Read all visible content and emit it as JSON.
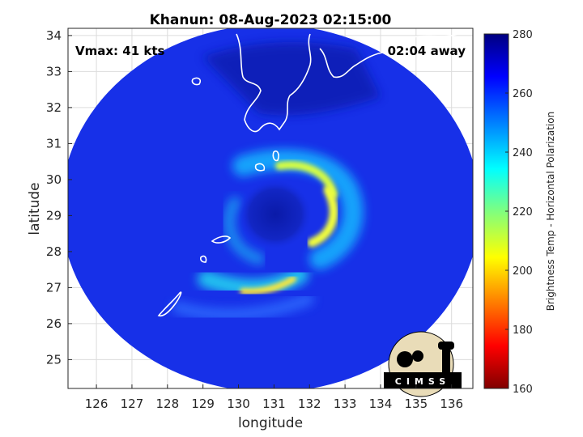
{
  "chart_data": {
    "type": "heatmap",
    "title": "Khanun: 08-Aug-2023 02:15:00",
    "xlabel": "longitude",
    "ylabel": "latitude",
    "xlim": [
      125.2,
      136.6
    ],
    "ylim": [
      24.2,
      34.2
    ],
    "xticks": [
      126,
      127,
      128,
      129,
      130,
      131,
      132,
      133,
      134,
      135,
      136
    ],
    "yticks": [
      25,
      26,
      27,
      28,
      29,
      30,
      31,
      32,
      33,
      34
    ],
    "grid": true,
    "annotations": {
      "vmax": "Vmax: 41 kts",
      "away": "02:04 away"
    },
    "colorbar": {
      "label": "Brightness Temp - Horizontal Polarization",
      "range": [
        160,
        280
      ],
      "ticks": [
        160,
        180,
        200,
        220,
        240,
        260,
        280
      ],
      "colormap": "jet",
      "colors": [
        "#800000",
        "#ff0000",
        "#ffff00",
        "#00ffff",
        "#0000ff",
        "#000080"
      ]
    },
    "swath": {
      "center_lon": 130.9,
      "center_lat": 29.2,
      "radius_deg_lon": 5.9,
      "radius_deg_lat": 5.1,
      "background_value": 262
    },
    "storm_eye": {
      "lon": 130.9,
      "lat": 29.0,
      "value": 268
    },
    "features": [
      {
        "name": "northern eyewall band",
        "lon": 132.4,
        "lat": 30.3,
        "value": 205
      },
      {
        "name": "eastern eyewall band",
        "lon": 132.6,
        "lat": 29.1,
        "value": 212
      },
      {
        "name": "southern rainband",
        "lon": 131.2,
        "lat": 26.9,
        "value": 206
      }
    ],
    "logo": "CIMSS"
  },
  "colors": {
    "swath_background": "#1730e8",
    "coast": "#ffffff"
  }
}
